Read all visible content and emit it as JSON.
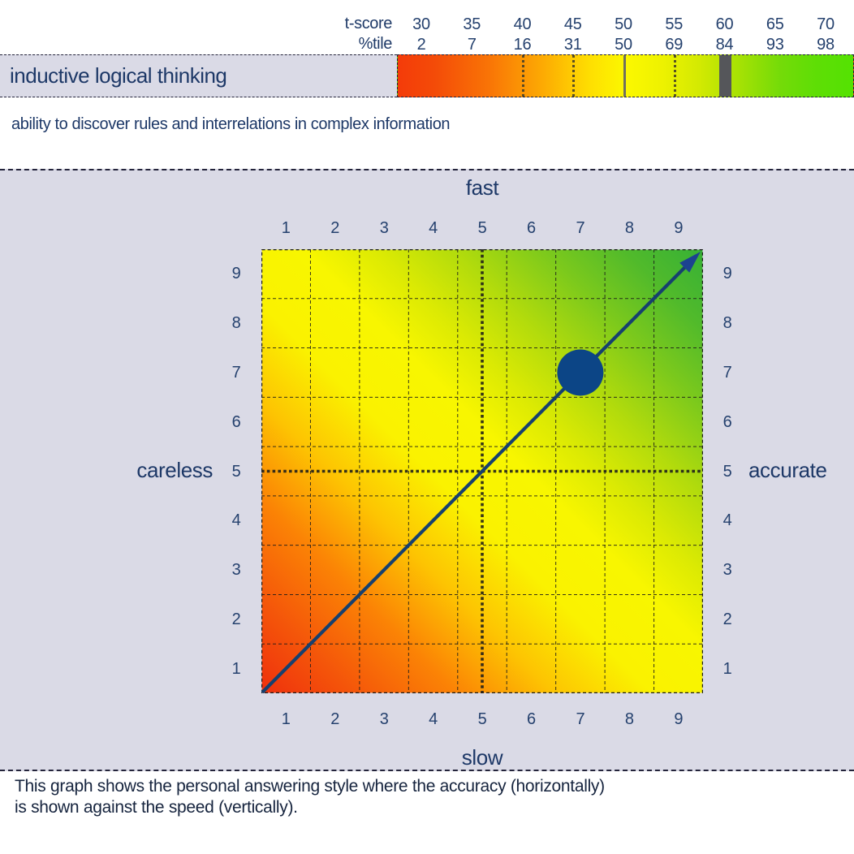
{
  "scale": {
    "t_score_label": "t-score",
    "ptile_label": "%tile",
    "t_scores": [
      "30",
      "35",
      "40",
      "45",
      "50",
      "55",
      "60",
      "65",
      "70"
    ],
    "ptiles": [
      "2",
      "7",
      "16",
      "31",
      "50",
      "69",
      "84",
      "93",
      "98"
    ]
  },
  "trait": {
    "title": "inductive logical thinking",
    "description": "ability to discover rules and interrelations in complex information"
  },
  "quadrant": {
    "top_label": "fast",
    "bottom_label": "slow",
    "left_label": "careless",
    "right_label": "accurate",
    "x_ticks": [
      "1",
      "2",
      "3",
      "4",
      "5",
      "6",
      "7",
      "8",
      "9"
    ],
    "y_ticks": [
      "9",
      "8",
      "7",
      "6",
      "5",
      "4",
      "3",
      "2",
      "1"
    ]
  },
  "caption": {
    "line1": "This graph shows the personal answering style where the accuracy (horizontally)",
    "line2": "is shown against the speed (vertically)."
  },
  "colors": {
    "lavender_bg": "#dadae6",
    "navy_text": "#1d3867",
    "score_marker_gray": "#55565a",
    "point_blue": "#0c4586",
    "diagonal_blue": "#16406f",
    "gradient_red": "#f43b09",
    "gradient_yellow": "#fcf800",
    "gradient_green": "#36b136"
  },
  "chart_data": [
    {
      "type": "heatmap",
      "name": "t-score color scale bar",
      "title": "inductive logical thinking",
      "axis_rows": [
        "t-score",
        "%tile"
      ],
      "t_score_ticks": [
        30,
        35,
        40,
        45,
        50,
        55,
        60,
        65,
        70
      ],
      "percentile_ticks": [
        2,
        7,
        16,
        31,
        50,
        69,
        84,
        93,
        98
      ],
      "axis_range_t": [
        27.5,
        72.5
      ],
      "reference_lines": {
        "dotted_t": [
          40,
          45,
          55
        ],
        "solid_t": [
          50
        ]
      },
      "score_marker": {
        "t_score": 60,
        "percentile": 84
      },
      "legend_position": "none",
      "grid": false
    },
    {
      "type": "scatter",
      "name": "answering style: accuracy vs speed",
      "x_axis": {
        "label_left": "careless",
        "label_right": "accurate",
        "ticks": [
          1,
          2,
          3,
          4,
          5,
          6,
          7,
          8,
          9
        ],
        "range": [
          0.5,
          9.5
        ]
      },
      "y_axis": {
        "label_top": "fast",
        "label_bottom": "slow",
        "ticks": [
          1,
          2,
          3,
          4,
          5,
          6,
          7,
          8,
          9
        ],
        "range": [
          0.5,
          9.5
        ]
      },
      "points": [
        {
          "accuracy": 7,
          "speed": 7
        }
      ],
      "diagonal_line": {
        "from": [
          1,
          1
        ],
        "to": [
          9,
          9
        ],
        "arrow_at": "top-right"
      },
      "reference_dotted": {
        "x": 5,
        "y": 5
      },
      "grid": "9x9 dashed cells, color gradient red(slow/careless) to green(fast/accurate)"
    }
  ]
}
